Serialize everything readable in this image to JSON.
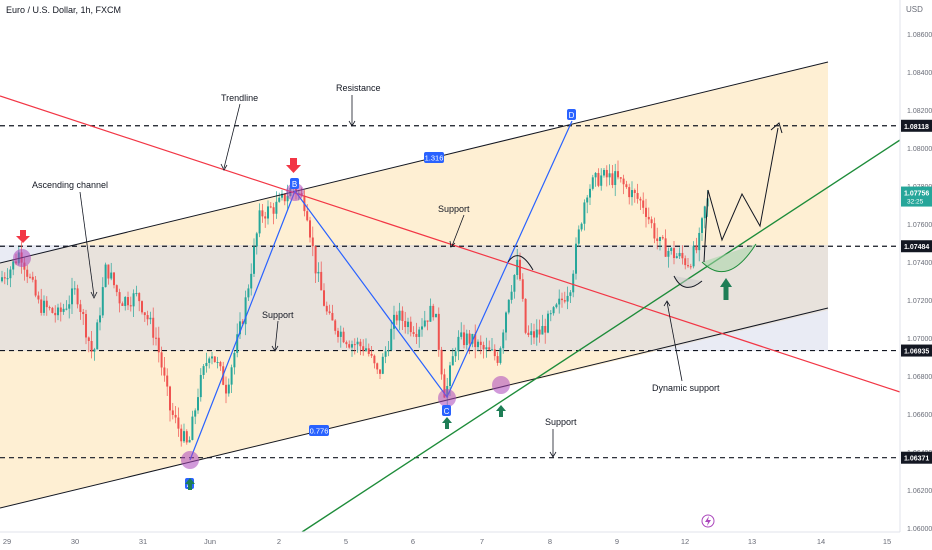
{
  "header": {
    "symbol_title": "Euro / U.S. Dollar, 1h, FXCM",
    "currency": "USD"
  },
  "chart_data": {
    "type": "candlestick",
    "symbol": "Euro / U.S. Dollar",
    "timeframe": "1h",
    "source": "FXCM",
    "y_range": [
      1.0598,
      1.0878
    ],
    "y_ticks": [
      "1.08600",
      "1.08400",
      "1.08200",
      "1.08000",
      "1.07800",
      "1.07600",
      "1.07400",
      "1.07200",
      "1.07000",
      "1.06800",
      "1.06600",
      "1.06400",
      "1.06200",
      "1.06000"
    ],
    "x_ticks": [
      "29",
      "30",
      "31",
      "Jun",
      "2",
      "5",
      "6",
      "7",
      "8",
      "9",
      "12",
      "13",
      "14",
      "15"
    ],
    "levels": [
      {
        "value": 1.08118,
        "label": "1.08118"
      },
      {
        "value": 1.07484,
        "label": "1.07484"
      },
      {
        "value": 1.06935,
        "label": "1.06935"
      },
      {
        "value": 1.06371,
        "label": "1.06371"
      }
    ],
    "current_price": {
      "value": 1.07756,
      "label": "1.07756",
      "countdown": "32:25",
      "color": "#26a69a"
    },
    "pattern_points": [
      {
        "label": "A",
        "value": 1.06371
      },
      {
        "label": "B",
        "value": 1.0776
      },
      {
        "label": "C",
        "value": 1.0668
      },
      {
        "label": "D",
        "value": 1.08118
      }
    ],
    "ratios": [
      "1.316",
      "0.776"
    ],
    "annotations": [
      "Trendline",
      "Resistance",
      "Ascending channel",
      "Support",
      "Support",
      "Support",
      "Dynamic support"
    ],
    "colors": {
      "up": "#26a69a",
      "down": "#ef5350",
      "trendline": "#f23645",
      "pattern": "#2962ff",
      "dynamic_support": "#1e8c3a",
      "channel_fill": "#fde9c4",
      "zone_fill": "#e1dfe8"
    }
  }
}
